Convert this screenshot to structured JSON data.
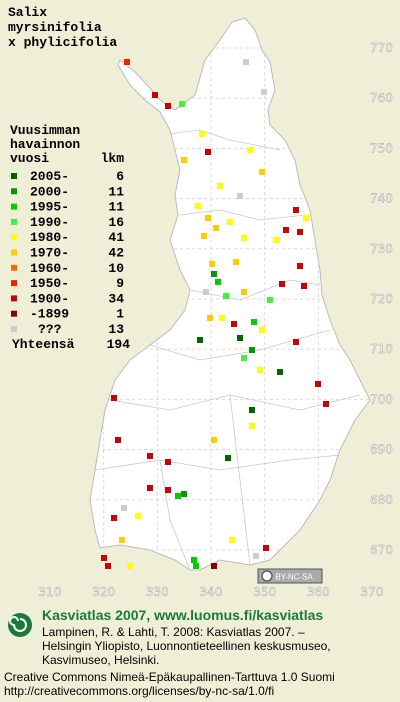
{
  "title": [
    "Salix",
    "myrsinifolia",
    "x phylicifolia"
  ],
  "legend": {
    "heading": [
      "Vuusimman",
      "havainnon",
      "vuosi"
    ],
    "count_heading": "lkm",
    "items": [
      {
        "label": "2005-",
        "count": 6,
        "color": "#006600"
      },
      {
        "label": "2000-",
        "count": 11,
        "color": "#009900"
      },
      {
        "label": "1995-",
        "count": 11,
        "color": "#00cc00"
      },
      {
        "label": "1990-",
        "count": 16,
        "color": "#44ee44"
      },
      {
        "label": "1980-",
        "count": 41,
        "color": "#ffff00"
      },
      {
        "label": "1970-",
        "count": 42,
        "color": "#ffcc00"
      },
      {
        "label": "1960-",
        "count": 10,
        "color": "#ff6600"
      },
      {
        "label": "1950-",
        "count": 9,
        "color": "#ee2200"
      },
      {
        "label": "1900-",
        "count": 34,
        "color": "#cc0000"
      },
      {
        "label": "-1899",
        "count": 1,
        "color": "#880000"
      },
      {
        "label": "???",
        "count": 13,
        "color": "#cccccc"
      }
    ],
    "total_label": "Yhteensä",
    "total": 194
  },
  "grid": {
    "yticks": [
      770,
      760,
      750,
      740,
      730,
      720,
      710,
      700,
      690,
      680,
      670
    ],
    "xticks": [
      310,
      320,
      330,
      340,
      350,
      360,
      370
    ]
  },
  "badge": "BY-NC-SA",
  "footer": {
    "heading": "Kasviatlas 2007, www.luomus.fi/kasviatlas",
    "citation": [
      "Lampinen, R. & Lahti, T. 2008: Kasviatlas 2007. –",
      "Helsingin Yliopisto, Luonnontieteellinen keskusmuseo,",
      "Kasvimuseo, Helsinki."
    ],
    "license": [
      "Creative Commons Nimeä-Epäkaupallinen-Tarttuva 1.0 Suomi",
      "http://creativecommons.org/licenses/by-nc-sa/1.0/fi"
    ]
  }
}
